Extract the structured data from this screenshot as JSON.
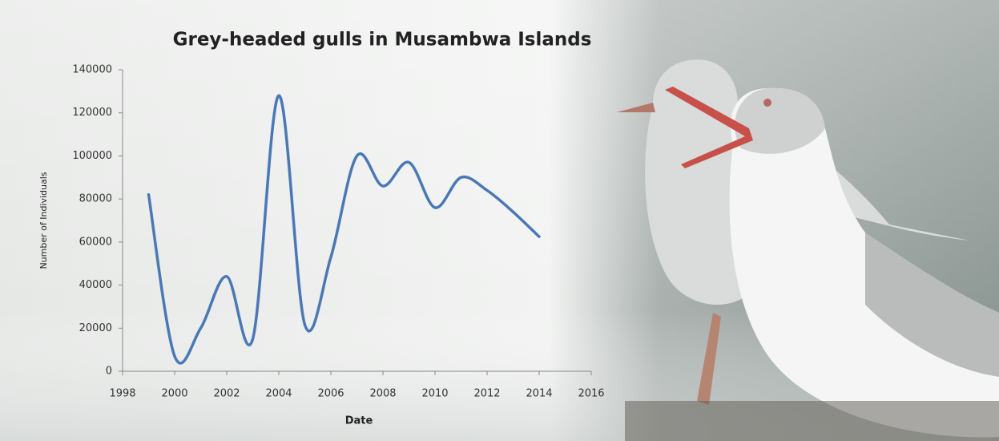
{
  "chart_data": {
    "type": "line",
    "title": "Grey-headed gulls in Musambwa Islands",
    "x_label": "Date",
    "y_label": "Number of Individuals",
    "x": [
      1999,
      2000,
      2001,
      2002,
      2003,
      2004,
      2005,
      2006,
      2007,
      2008,
      2009,
      2010,
      2011,
      2012,
      2013,
      2014
    ],
    "series": [
      {
        "color": "#4a78b5",
        "values": [
          82000,
          7000,
          20000,
          44000,
          15000,
          128000,
          21600,
          53000,
          100000,
          86000,
          97000,
          76000,
          90000,
          84000,
          74000,
          62500
        ]
      }
    ],
    "xlim": [
      1998,
      2016
    ],
    "xticks": [
      1998,
      2000,
      2002,
      2004,
      2006,
      2008,
      2010,
      2012,
      2014,
      2016
    ],
    "ylim": [
      0,
      140000
    ],
    "yticks": [
      0,
      20000,
      40000,
      60000,
      80000,
      100000,
      120000,
      140000
    ],
    "smooth": true
  }
}
